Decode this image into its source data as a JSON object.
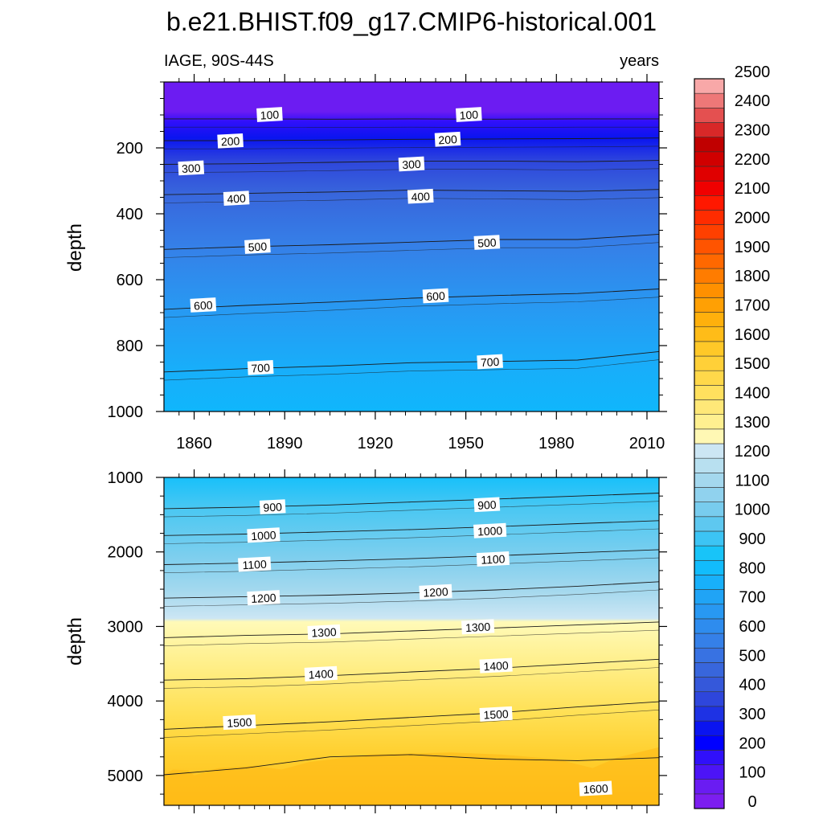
{
  "title": "b.e21.BHIST.f09_g17.CMIP6-historical.001",
  "left_subtitle": "IAGE, 90S-44S",
  "right_subtitle": "years",
  "chart_data": {
    "type": "heatmap",
    "title": "b.e21.BHIST.f09_g17.CMIP6-historical.001",
    "variable": "IAGE, 90S-44S",
    "units": "years",
    "x_tick_labels": [
      "1860",
      "1890",
      "1920",
      "1950",
      "1980",
      "2010"
    ],
    "x_range": [
      1850,
      2014
    ],
    "colorbar": {
      "levels": [
        0,
        100,
        200,
        300,
        400,
        500,
        600,
        700,
        800,
        900,
        1000,
        1100,
        1200,
        1300,
        1400,
        1500,
        1600,
        1700,
        1800,
        1900,
        2000,
        2100,
        2200,
        2300,
        2400,
        2500
      ],
      "level_step": 50,
      "colors": [
        "#7c1ef0",
        "#6a1cf2",
        "#4c14f6",
        "#3010fa",
        "#0000ff",
        "#0a14f0",
        "#1e32e4",
        "#2e46dc",
        "#3558da",
        "#3866dc",
        "#3872e2",
        "#3580e8",
        "#2e8cee",
        "#2898f2",
        "#20a4f6",
        "#18b0fa",
        "#12bcfc",
        "#18c4f8",
        "#3cc4f4",
        "#5ec8f0",
        "#78ccee",
        "#90d2ee",
        "#a4d8ee",
        "#b8e0f0",
        "#cce6f4",
        "#fff8b4",
        "#fff090",
        "#ffe878",
        "#ffe05e",
        "#ffd84a",
        "#ffd038",
        "#ffc828",
        "#ffbc18",
        "#ffb00c",
        "#ffa004",
        "#ff9000",
        "#ff7c00",
        "#ff6800",
        "#ff5400",
        "#ff4000",
        "#ff2c00",
        "#ff1800",
        "#f00000",
        "#e00000",
        "#d00000",
        "#c00000",
        "#d82828",
        "#e45050",
        "#ee7878",
        "#f8a8a8"
      ]
    },
    "panels": [
      {
        "name": "upper",
        "ylabel": "depth",
        "y_range": [
          0,
          1000
        ],
        "y_tick_labels": [
          "200",
          "400",
          "600",
          "800",
          "1000"
        ],
        "contours": [
          {
            "level": 100,
            "depths": [
              112,
              112,
              113,
              112,
              113,
              112,
              112
            ]
          },
          {
            "level": 200,
            "depths": [
              178,
              178,
              176,
              174,
              173,
              172,
              170
            ]
          },
          {
            "level": 300,
            "depths": [
              250,
              248,
              244,
              240,
              240,
              242,
              238
            ]
          },
          {
            "level": 400,
            "depths": [
              342,
              338,
              334,
              328,
              330,
              332,
              326
            ]
          },
          {
            "level": 500,
            "depths": [
              508,
              500,
              494,
              486,
              478,
              478,
              462
            ]
          },
          {
            "level": 600,
            "depths": [
              690,
              678,
              668,
              656,
              648,
              642,
              628
            ]
          },
          {
            "level": 700,
            "depths": [
              880,
              870,
              862,
              852,
              848,
              844,
              818
            ]
          }
        ],
        "contour_labels": [
          {
            "text": "100",
            "year": 1885,
            "depth": 100
          },
          {
            "text": "100",
            "year": 1951,
            "depth": 100
          },
          {
            "text": "200",
            "year": 1872,
            "depth": 180
          },
          {
            "text": "200",
            "year": 1944,
            "depth": 175
          },
          {
            "text": "300",
            "year": 1859,
            "depth": 262
          },
          {
            "text": "300",
            "year": 1932,
            "depth": 250
          },
          {
            "text": "400",
            "year": 1874,
            "depth": 354
          },
          {
            "text": "400",
            "year": 1935,
            "depth": 348
          },
          {
            "text": "500",
            "year": 1881,
            "depth": 500
          },
          {
            "text": "500",
            "year": 1957,
            "depth": 488
          },
          {
            "text": "600",
            "year": 1863,
            "depth": 678
          },
          {
            "text": "600",
            "year": 1940,
            "depth": 650
          },
          {
            "text": "700",
            "year": 1882,
            "depth": 868
          },
          {
            "text": "700",
            "year": 1958,
            "depth": 850
          }
        ]
      },
      {
        "name": "lower",
        "ylabel": "depth",
        "y_range": [
          1000,
          5400
        ],
        "y_tick_labels": [
          "1000",
          "2000",
          "3000",
          "4000",
          "5000"
        ],
        "contours": [
          {
            "level": 900,
            "depths": [
              1420,
              1400,
              1370,
              1330,
              1290,
              1250,
              1210
            ]
          },
          {
            "level": 1000,
            "depths": [
              1780,
              1760,
              1730,
              1700,
              1660,
              1620,
              1580
            ]
          },
          {
            "level": 1100,
            "depths": [
              2170,
              2150,
              2120,
              2090,
              2050,
              2010,
              1970
            ]
          },
          {
            "level": 1200,
            "depths": [
              2620,
              2600,
              2580,
              2550,
              2510,
              2460,
              2400
            ]
          },
          {
            "level": 1300,
            "depths": [
              3150,
              3120,
              3100,
              3060,
              3020,
              2980,
              2940
            ]
          },
          {
            "level": 1400,
            "depths": [
              3720,
              3700,
              3660,
              3610,
              3560,
              3500,
              3440
            ]
          },
          {
            "level": 1500,
            "depths": [
              4380,
              4330,
              4280,
              4220,
              4160,
              4080,
              4010
            ]
          },
          {
            "level": 1550,
            "depths": [
              4990,
              4900,
              4750,
              4720,
              4780,
              4800,
              4760
            ]
          }
        ],
        "contour_labels": [
          {
            "text": "900",
            "year": 1886,
            "depth": 1400
          },
          {
            "text": "900",
            "year": 1957,
            "depth": 1370
          },
          {
            "text": "1000",
            "year": 1883,
            "depth": 1780
          },
          {
            "text": "1000",
            "year": 1958,
            "depth": 1720
          },
          {
            "text": "1100",
            "year": 1880,
            "depth": 2170
          },
          {
            "text": "1100",
            "year": 1959,
            "depth": 2100
          },
          {
            "text": "1200",
            "year": 1883,
            "depth": 2620
          },
          {
            "text": "1200",
            "year": 1940,
            "depth": 2540
          },
          {
            "text": "1300",
            "year": 1903,
            "depth": 3080
          },
          {
            "text": "1300",
            "year": 1954,
            "depth": 3010
          },
          {
            "text": "1400",
            "year": 1902,
            "depth": 3640
          },
          {
            "text": "1400",
            "year": 1960,
            "depth": 3530
          },
          {
            "text": "1500",
            "year": 1875,
            "depth": 4290
          },
          {
            "text": "1500",
            "year": 1960,
            "depth": 4180
          },
          {
            "text": "1600",
            "year": 1993,
            "depth": 5180
          }
        ]
      }
    ]
  }
}
